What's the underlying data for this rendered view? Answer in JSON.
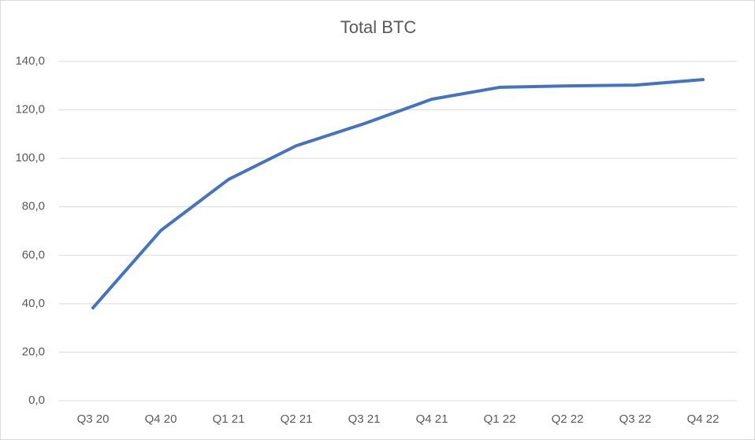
{
  "chart_data": {
    "type": "line",
    "title": "Total BTC",
    "categories": [
      "Q3 20",
      "Q4 20",
      "Q1 21",
      "Q2 21",
      "Q3 21",
      "Q4 21",
      "Q1 22",
      "Q2 22",
      "Q3 22",
      "Q4 22"
    ],
    "values": [
      38.3,
      70.2,
      91.3,
      105.2,
      114.3,
      124.4,
      129.3,
      129.9,
      130.2,
      132.5
    ],
    "color": "#4472c4",
    "ylim": [
      0,
      140
    ],
    "yticks": [
      {
        "value": 0,
        "label": "0,0"
      },
      {
        "value": 20,
        "label": "20,0"
      },
      {
        "value": 40,
        "label": "40,0"
      },
      {
        "value": 60,
        "label": "60,0"
      },
      {
        "value": 80,
        "label": "80,0"
      },
      {
        "value": 100,
        "label": "100,0"
      },
      {
        "value": 120,
        "label": "120,0"
      },
      {
        "value": 140,
        "label": "140,0"
      }
    ],
    "grid": true
  }
}
